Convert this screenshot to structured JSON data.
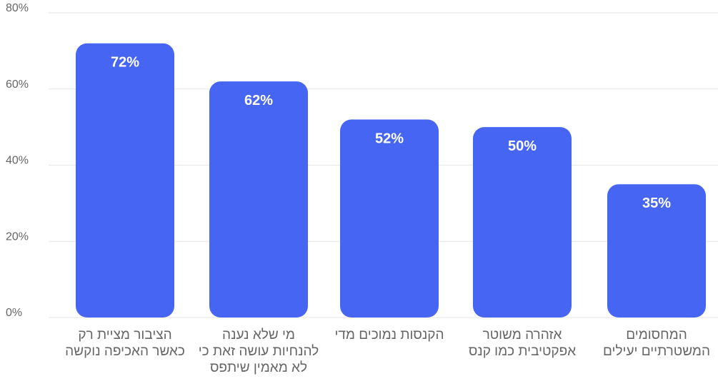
{
  "chart_data": {
    "type": "bar",
    "categories": [
      "הציבור מציית רק כאשר האכיפה נוקשה",
      "מי שלא נענה להנחיות עושה זאת כי לא מאמין שיתפס",
      "הקנסות נמוכים מדי",
      "אזהרה משוטר אפקטיבית כמו קנס",
      "המחסומים המשטרתיים יעילים"
    ],
    "values": [
      72,
      62,
      52,
      50,
      35
    ],
    "data_labels": [
      "72%",
      "62%",
      "52%",
      "50%",
      "35%"
    ],
    "ylim": [
      0,
      80
    ],
    "yticks": [
      0,
      20,
      40,
      60,
      80
    ],
    "ytick_labels": [
      "0%",
      "20%",
      "40%",
      "60%",
      "80%"
    ],
    "grid": true,
    "bar_color": "#4665f2",
    "label_color": "#ffffff"
  }
}
